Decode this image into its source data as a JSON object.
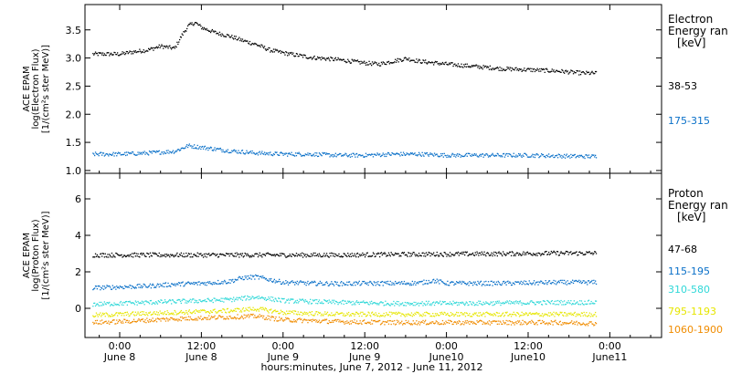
{
  "chart_data": [
    {
      "type": "scatter",
      "panel": "electron",
      "ylabel_lines": [
        "ACE EPAM",
        "log(Electron Flux)",
        "[1/(cm²s ster MeV)]"
      ],
      "ylim": [
        0.95,
        3.95
      ],
      "yticks": [
        1.0,
        1.5,
        2.0,
        2.5,
        3.0,
        3.5
      ],
      "ytick_labels": [
        "1.0",
        "1.5",
        "2.0",
        "2.5",
        "3.0",
        "3.5"
      ],
      "legend_title_lines": [
        "Electron",
        "Energy ran",
        "[keV]"
      ],
      "series": [
        {
          "name": "38-53",
          "color": "#000000",
          "x_hours": [
            -4,
            0,
            2,
            4,
            6,
            8,
            9,
            10,
            11,
            12,
            14,
            16,
            18,
            20,
            22,
            24,
            28,
            32,
            36,
            38,
            40,
            42,
            44,
            48,
            52,
            56,
            60,
            64,
            68,
            70
          ],
          "y": [
            3.08,
            3.08,
            3.12,
            3.15,
            3.22,
            3.18,
            3.4,
            3.58,
            3.64,
            3.55,
            3.46,
            3.4,
            3.32,
            3.25,
            3.15,
            3.1,
            3.02,
            2.98,
            2.92,
            2.9,
            2.95,
            3.0,
            2.95,
            2.9,
            2.86,
            2.82,
            2.8,
            2.78,
            2.74,
            2.74
          ]
        },
        {
          "name": "175-315",
          "color": "#0a70c8",
          "x_hours": [
            -4,
            0,
            4,
            8,
            10,
            12,
            16,
            20,
            24,
            28,
            32,
            36,
            40,
            44,
            48,
            52,
            56,
            60,
            64,
            68,
            70
          ],
          "y": [
            1.3,
            1.3,
            1.32,
            1.35,
            1.45,
            1.42,
            1.36,
            1.32,
            1.3,
            1.3,
            1.28,
            1.28,
            1.3,
            1.3,
            1.28,
            1.28,
            1.28,
            1.28,
            1.27,
            1.26,
            1.26
          ]
        }
      ]
    },
    {
      "type": "scatter",
      "panel": "proton",
      "ylabel_lines": [
        "ACE EPAM",
        "log(Proton Flux)",
        "[1/(cm²s ster MeV)]"
      ],
      "ylim": [
        -1.6,
        7.4
      ],
      "yticks": [
        0,
        2,
        4,
        6
      ],
      "ytick_labels": [
        "0",
        "2",
        "4",
        "6"
      ],
      "legend_title_lines": [
        "Proton",
        "Energy ran",
        "[keV]"
      ],
      "series": [
        {
          "name": "47-68",
          "color": "#000000",
          "x_hours": [
            -4,
            0,
            8,
            16,
            24,
            32,
            40,
            48,
            56,
            64,
            70
          ],
          "y": [
            2.95,
            2.95,
            2.95,
            2.95,
            2.95,
            2.95,
            2.98,
            3.0,
            3.02,
            3.05,
            3.05
          ]
        },
        {
          "name": "115-195",
          "color": "#0a70c8",
          "x_hours": [
            -4,
            0,
            4,
            8,
            12,
            16,
            18,
            20,
            22,
            24,
            28,
            32,
            36,
            40,
            44,
            46,
            48,
            52,
            56,
            60,
            64,
            68,
            70
          ],
          "y": [
            1.15,
            1.2,
            1.25,
            1.35,
            1.4,
            1.5,
            1.7,
            1.75,
            1.6,
            1.45,
            1.4,
            1.38,
            1.4,
            1.4,
            1.42,
            1.55,
            1.4,
            1.4,
            1.4,
            1.42,
            1.45,
            1.45,
            1.45
          ]
        },
        {
          "name": "310-580",
          "color": "#30d8d8",
          "x_hours": [
            -4,
            0,
            8,
            16,
            20,
            24,
            32,
            40,
            48,
            56,
            64,
            70
          ],
          "y": [
            0.25,
            0.3,
            0.4,
            0.5,
            0.65,
            0.45,
            0.35,
            0.3,
            0.3,
            0.32,
            0.35,
            0.35
          ]
        },
        {
          "name": "795-1193",
          "color": "#e6e600",
          "x_hours": [
            -4,
            0,
            8,
            16,
            20,
            24,
            32,
            40,
            48,
            56,
            64,
            70
          ],
          "y": [
            -0.35,
            -0.3,
            -0.2,
            -0.1,
            0.0,
            -0.2,
            -0.3,
            -0.3,
            -0.3,
            -0.3,
            -0.3,
            -0.3
          ]
        },
        {
          "name": "1060-1900",
          "color": "#f08c00",
          "x_hours": [
            -4,
            0,
            8,
            16,
            20,
            24,
            32,
            40,
            48,
            56,
            64,
            70
          ],
          "y": [
            -0.75,
            -0.7,
            -0.55,
            -0.45,
            -0.4,
            -0.6,
            -0.7,
            -0.75,
            -0.75,
            -0.75,
            -0.75,
            -0.8
          ]
        }
      ]
    }
  ],
  "x_axis": {
    "range_hours": [
      -5.1,
      79.6
    ],
    "ticks": [
      {
        "hour": 0,
        "time": "0:00",
        "day": "June 8"
      },
      {
        "hour": 12,
        "time": "12:00",
        "day": "June 8"
      },
      {
        "hour": 24,
        "time": "0:00",
        "day": "June 9"
      },
      {
        "hour": 36,
        "time": "12:00",
        "day": "June 9"
      },
      {
        "hour": 48,
        "time": "0:00",
        "day": "June10"
      },
      {
        "hour": 60,
        "time": "12:00",
        "day": "June10"
      },
      {
        "hour": 72,
        "time": "0:00",
        "day": "June11"
      }
    ],
    "label": "hours:minutes, June  7, 2012 - June 11, 2012"
  }
}
